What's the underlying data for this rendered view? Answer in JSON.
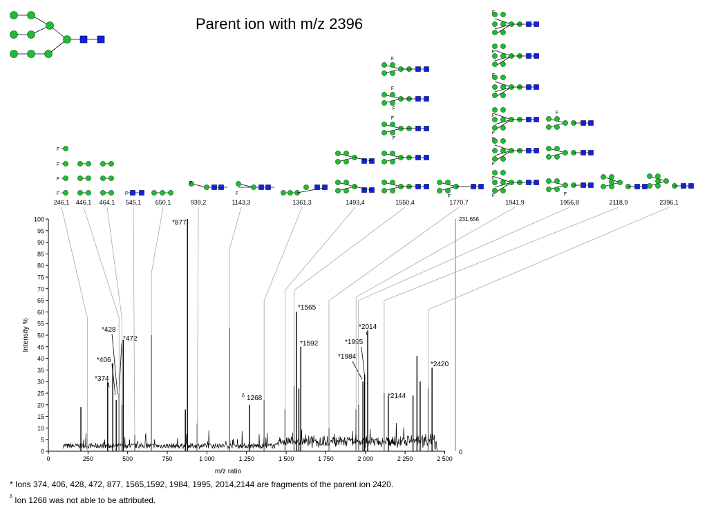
{
  "title": "Parent ion with m/z 2396",
  "chart_data": {
    "type": "line",
    "xlabel": "m/z ratio",
    "ylabel": "Intensity %",
    "xlim": [
      0,
      2500
    ],
    "ylim": [
      0,
      100
    ],
    "x_ticks": [
      0,
      250,
      500,
      750,
      1000,
      1250,
      1500,
      1750,
      2000,
      2250,
      2500
    ],
    "x_tick_labels": [
      "0",
      "250",
      "500",
      "750",
      "1 000",
      "1 250",
      "1 500",
      "1 750",
      "2 000",
      "2 250",
      "2 500"
    ],
    "y_ticks": [
      0,
      5,
      10,
      15,
      20,
      25,
      30,
      35,
      40,
      45,
      50,
      55,
      60,
      65,
      70,
      75,
      80,
      85,
      90,
      95,
      100
    ],
    "right_axis_labels": {
      "top": "231,656",
      "bottom": "0"
    },
    "peaks": [
      {
        "x": 205,
        "y": 19
      },
      {
        "x": 374,
        "y": 30
      },
      {
        "x": 406,
        "y": 38
      },
      {
        "x": 428,
        "y": 22
      },
      {
        "x": 446,
        "y": 25
      },
      {
        "x": 464,
        "y": 20
      },
      {
        "x": 472,
        "y": 48
      },
      {
        "x": 545,
        "y": 7
      },
      {
        "x": 650,
        "y": 50
      },
      {
        "x": 864,
        "y": 18
      },
      {
        "x": 877,
        "y": 100
      },
      {
        "x": 939,
        "y": 12
      },
      {
        "x": 1143,
        "y": 53
      },
      {
        "x": 1268,
        "y": 20
      },
      {
        "x": 1361,
        "y": 22
      },
      {
        "x": 1493,
        "y": 18
      },
      {
        "x": 1550,
        "y": 28
      },
      {
        "x": 1565,
        "y": 60
      },
      {
        "x": 1580,
        "y": 27
      },
      {
        "x": 1592,
        "y": 45
      },
      {
        "x": 1770,
        "y": 10
      },
      {
        "x": 1941,
        "y": 18
      },
      {
        "x": 1956,
        "y": 20
      },
      {
        "x": 1984,
        "y": 30
      },
      {
        "x": 1995,
        "y": 33
      },
      {
        "x": 2014,
        "y": 52
      },
      {
        "x": 2118,
        "y": 25
      },
      {
        "x": 2144,
        "y": 24
      },
      {
        "x": 2300,
        "y": 24
      },
      {
        "x": 2325,
        "y": 41
      },
      {
        "x": 2345,
        "y": 30
      },
      {
        "x": 2396,
        "y": 27
      },
      {
        "x": 2420,
        "y": 36
      }
    ],
    "annotations": [
      {
        "text": "*877",
        "x": 877,
        "y": 100
      },
      {
        "text": "*428",
        "x": 428,
        "y": 22
      },
      {
        "text": "*472",
        "x": 472,
        "y": 48
      },
      {
        "text": "*406",
        "x": 406,
        "y": 38
      },
      {
        "text": "*374",
        "x": 374,
        "y": 30
      },
      {
        "text": "1268",
        "sup": "δ",
        "x": 1268,
        "y": 20
      },
      {
        "text": "*1565",
        "x": 1565,
        "y": 60
      },
      {
        "text": "*1592",
        "x": 1592,
        "y": 45
      },
      {
        "text": "*2014",
        "x": 2014,
        "y": 52
      },
      {
        "text": "*1995",
        "x": 1995,
        "y": 33
      },
      {
        "text": "*1984",
        "x": 1984,
        "y": 30
      },
      {
        "text": "*2144",
        "x": 2144,
        "y": 24
      },
      {
        "text": "*2420",
        "x": 2420,
        "y": 36
      }
    ],
    "fragments": [
      {
        "label": "246,1",
        "x": 246
      },
      {
        "label": "446,1",
        "x": 446
      },
      {
        "label": "464,1",
        "x": 464
      },
      {
        "label": "545,1",
        "x": 545
      },
      {
        "label": "650,1",
        "x": 650
      },
      {
        "label": "939,2",
        "x": 939
      },
      {
        "label": "1143,3",
        "x": 1143
      },
      {
        "label": "1361,3",
        "x": 1361
      },
      {
        "label": "1493,4",
        "x": 1493
      },
      {
        "label": "1550,4",
        "x": 1550
      },
      {
        "label": "1770,7",
        "x": 1770
      },
      {
        "label": "1941,9",
        "x": 1941
      },
      {
        "label": "1956,8",
        "x": 1956
      },
      {
        "label": "2118,9",
        "x": 2118
      },
      {
        "label": "2396,1",
        "x": 2396
      }
    ],
    "colors": {
      "line": "#000000",
      "leader": "#b0b0b0",
      "mannose": "#22bb33",
      "glcnac": "#1122dd"
    }
  },
  "footnotes": {
    "line1": "* Ions 374, 406, 428, 472, 877, 1565,1592, 1984, 1995, 2014,2144 are fragments of the parent ion 2420.",
    "line2_sup": "δ",
    "line2": " Ion 1268 was not able to be attributed."
  }
}
